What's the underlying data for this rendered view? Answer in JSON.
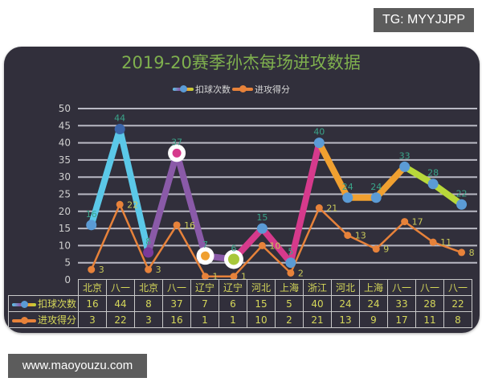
{
  "watermarks": {
    "top": "TG: MYYJJPP",
    "bottom": "www.maoyouzu.com"
  },
  "colors": {
    "background_card": "#312f3b",
    "title": "#7fb04e",
    "grid": "#b9b9c4",
    "series1_marker": "#5b9bd5",
    "series2_line": "#e7823a",
    "table_text": "#d6d85a",
    "label_series1": "#3aa58a",
    "label_series2": "#c9c95a"
  },
  "chart_data": {
    "type": "line",
    "title": "2019-20赛季孙杰每场进攻数据",
    "xlabel": "",
    "ylabel": "",
    "ylim": [
      0,
      50
    ],
    "yticks": [
      0,
      5,
      10,
      15,
      20,
      25,
      30,
      35,
      40,
      45,
      50
    ],
    "grid": true,
    "legend_position": "top",
    "categories": [
      "北京",
      "八一",
      "北京",
      "八一",
      "辽宁",
      "辽宁",
      "河北",
      "上海",
      "浙江",
      "河北",
      "上海",
      "八一",
      "八一",
      "八一"
    ],
    "series": [
      {
        "name": "扣球次数",
        "values": [
          16,
          44,
          8,
          37,
          7,
          6,
          15,
          5,
          40,
          24,
          24,
          33,
          28,
          22
        ],
        "segment_colors": [
          "#5bc8e8",
          "#5bc8e8",
          "#8a5aa8",
          "#8a5aa8",
          "#8a5aa8",
          "#d63a8c",
          "#d63a8c",
          "#d63a8c",
          "#f0a030",
          "#f0a030",
          "#f0a030",
          "#b8d83a",
          "#b8d83a"
        ]
      },
      {
        "name": "进攻得分",
        "values": [
          3,
          22,
          3,
          16,
          1,
          1,
          10,
          2,
          21,
          13,
          9,
          17,
          11,
          8
        ]
      }
    ]
  },
  "legend": {
    "items": [
      {
        "label": "扣球次数"
      },
      {
        "label": "进攻得分"
      }
    ]
  },
  "table": {
    "row_labels": [
      "扣球次数",
      "进攻得分"
    ]
  }
}
